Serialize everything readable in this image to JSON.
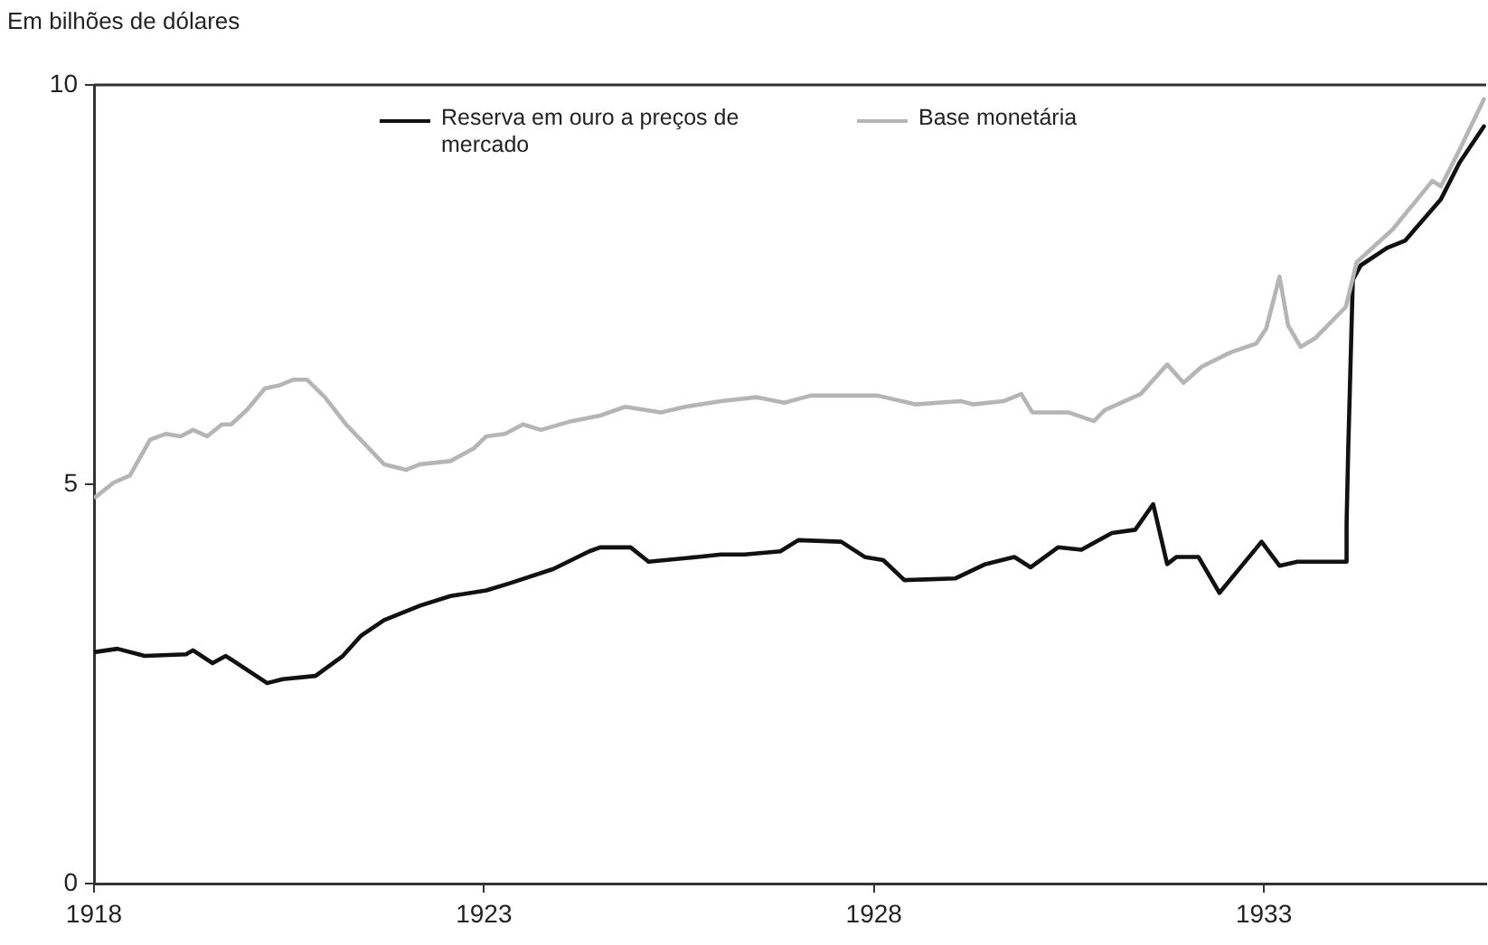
{
  "chart_data": {
    "type": "line",
    "ylabel": "Em bilhões de dólares",
    "xlim": [
      1918,
      1935.85
    ],
    "xticks": [
      1918,
      1923,
      1928,
      1933
    ],
    "ylim": [
      0,
      10
    ],
    "yticks": [
      0,
      5,
      10
    ],
    "grid": false,
    "legend": "top",
    "marker": "none",
    "line_style": "solid",
    "series": [
      {
        "name": "Reserva em ouro a preços de mercado",
        "color": "#111111",
        "x": [
          1918.02,
          1918.3,
          1918.65,
          1919.18,
          1919.27,
          1919.52,
          1919.69,
          1920.22,
          1920.42,
          1920.84,
          1921.19,
          1921.42,
          1921.72,
          1922.18,
          1922.57,
          1923.03,
          1923.33,
          1923.89,
          1924.35,
          1924.49,
          1924.88,
          1925.11,
          1925.74,
          1926.04,
          1926.34,
          1926.8,
          1927.03,
          1927.58,
          1927.88,
          1928.12,
          1928.39,
          1929.04,
          1929.43,
          1929.8,
          1930.01,
          1930.36,
          1930.66,
          1931.05,
          1931.35,
          1931.58,
          1931.76,
          1931.88,
          1932.16,
          1932.43,
          1932.97,
          1933.2,
          1933.43,
          1934.05,
          1934.06,
          1934.08,
          1934.14,
          1934.24,
          1934.58,
          1934.81,
          1935.27,
          1935.51,
          1935.82
        ],
        "values": [
          2.9,
          2.94,
          2.85,
          2.87,
          2.92,
          2.76,
          2.85,
          2.51,
          2.56,
          2.6,
          2.85,
          3.1,
          3.3,
          3.48,
          3.6,
          3.67,
          3.76,
          3.94,
          4.16,
          4.21,
          4.21,
          4.03,
          4.09,
          4.12,
          4.12,
          4.16,
          4.3,
          4.28,
          4.09,
          4.05,
          3.8,
          3.82,
          4.0,
          4.09,
          3.96,
          4.21,
          4.18,
          4.39,
          4.43,
          4.75,
          4.0,
          4.09,
          4.09,
          3.64,
          4.28,
          3.98,
          4.03,
          4.03,
          4.5,
          5.4,
          7.56,
          7.74,
          7.96,
          8.05,
          8.57,
          9.03,
          9.48
        ]
      },
      {
        "name": "Base monetária",
        "color": "#b5b5b5",
        "x": [
          1918.02,
          1918.25,
          1918.46,
          1918.72,
          1918.92,
          1919.11,
          1919.27,
          1919.45,
          1919.64,
          1919.76,
          1919.96,
          1920.19,
          1920.38,
          1920.56,
          1920.73,
          1920.96,
          1921.23,
          1921.72,
          1922.0,
          1922.18,
          1922.57,
          1922.87,
          1923.03,
          1923.27,
          1923.5,
          1923.73,
          1924.12,
          1924.49,
          1924.81,
          1925.27,
          1925.58,
          1926.04,
          1926.5,
          1926.85,
          1927.19,
          1928.05,
          1928.53,
          1929.11,
          1929.27,
          1929.66,
          1929.89,
          1930.03,
          1930.49,
          1930.82,
          1930.96,
          1931.42,
          1931.76,
          1931.97,
          1932.2,
          1932.57,
          1932.9,
          1933.03,
          1933.2,
          1933.31,
          1933.47,
          1933.66,
          1934.05,
          1934.19,
          1934.65,
          1935.16,
          1935.27,
          1935.51,
          1935.82
        ],
        "values": [
          4.84,
          5.02,
          5.11,
          5.56,
          5.63,
          5.6,
          5.68,
          5.6,
          5.75,
          5.75,
          5.93,
          6.2,
          6.24,
          6.31,
          6.31,
          6.09,
          5.75,
          5.25,
          5.18,
          5.25,
          5.29,
          5.45,
          5.6,
          5.63,
          5.75,
          5.68,
          5.79,
          5.86,
          5.97,
          5.9,
          5.97,
          6.04,
          6.09,
          6.02,
          6.11,
          6.11,
          6.0,
          6.04,
          6.0,
          6.04,
          6.13,
          5.9,
          5.9,
          5.79,
          5.93,
          6.13,
          6.5,
          6.27,
          6.47,
          6.65,
          6.76,
          6.95,
          7.6,
          6.99,
          6.72,
          6.83,
          7.22,
          7.78,
          8.19,
          8.8,
          8.73,
          9.19,
          9.82
        ]
      }
    ]
  }
}
